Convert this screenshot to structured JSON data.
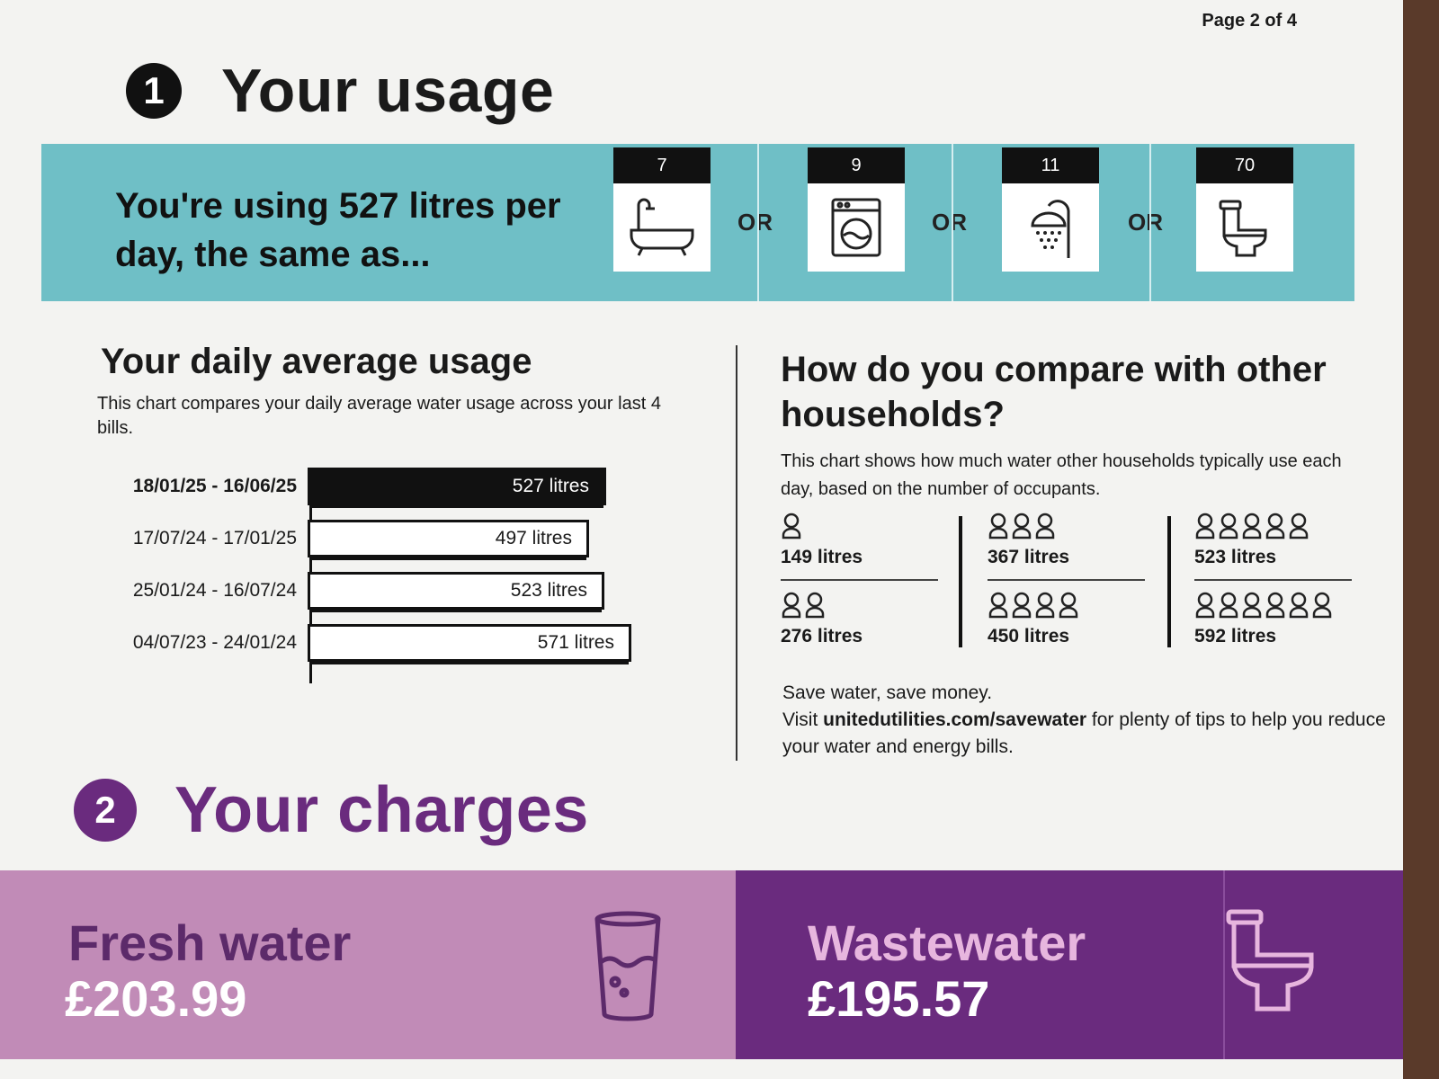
{
  "page_number": "Page 2 of 4",
  "section1": {
    "number": "1",
    "title": "Your usage"
  },
  "usage_banner": {
    "message": "You're using 527 litres per day, the same as...",
    "or_label": "OR",
    "equivalents": [
      {
        "count": "7",
        "icon": "bath-icon"
      },
      {
        "count": "9",
        "icon": "washing-machine-icon"
      },
      {
        "count": "11",
        "icon": "shower-icon"
      },
      {
        "count": "70",
        "icon": "toilet-icon"
      }
    ]
  },
  "daily_average": {
    "heading": "Your daily average usage",
    "description": "This chart compares your daily average water usage across your last 4 bills."
  },
  "chart_data": {
    "type": "bar",
    "orientation": "horizontal",
    "categories": [
      "18/01/25 - 16/06/25",
      "17/07/24 - 17/01/25",
      "25/01/24 - 16/07/24",
      "04/07/23 - 24/01/24"
    ],
    "values": [
      527,
      497,
      523,
      571
    ],
    "data_labels": [
      "527 litres",
      "497 litres",
      "523 litres",
      "571 litres"
    ],
    "highlighted_index": 0
  },
  "comparison": {
    "heading": "How do you compare with other households?",
    "description": "This chart shows how much water other households typically use each day, based on the number of occupants.",
    "households": [
      {
        "occupants": 1,
        "value": "149 litres"
      },
      {
        "occupants": 2,
        "value": "276 litres"
      },
      {
        "occupants": 3,
        "value": "367 litres"
      },
      {
        "occupants": 4,
        "value": "450 litres"
      },
      {
        "occupants": 5,
        "value": "523 litres"
      },
      {
        "occupants": 6,
        "value": "592 litres"
      }
    ]
  },
  "save_tip": {
    "line1": "Save water, save money.",
    "visit": "Visit",
    "link": "unitedutilities.com/savewater",
    "rest": "for plenty of tips to help you reduce your water and energy bills."
  },
  "section2": {
    "number": "2",
    "title": "Your charges"
  },
  "charges": {
    "fresh": {
      "name": "Fresh water",
      "amount": "£203.99",
      "icon": "glass-of-water-icon"
    },
    "waste": {
      "name": "Wastewater",
      "amount": "£195.57",
      "icon": "toilet-icon"
    }
  },
  "colors": {
    "teal": "#6fbfc6",
    "fresh_pink": "#c18bb7",
    "waste_purple": "#6a2b7e"
  }
}
